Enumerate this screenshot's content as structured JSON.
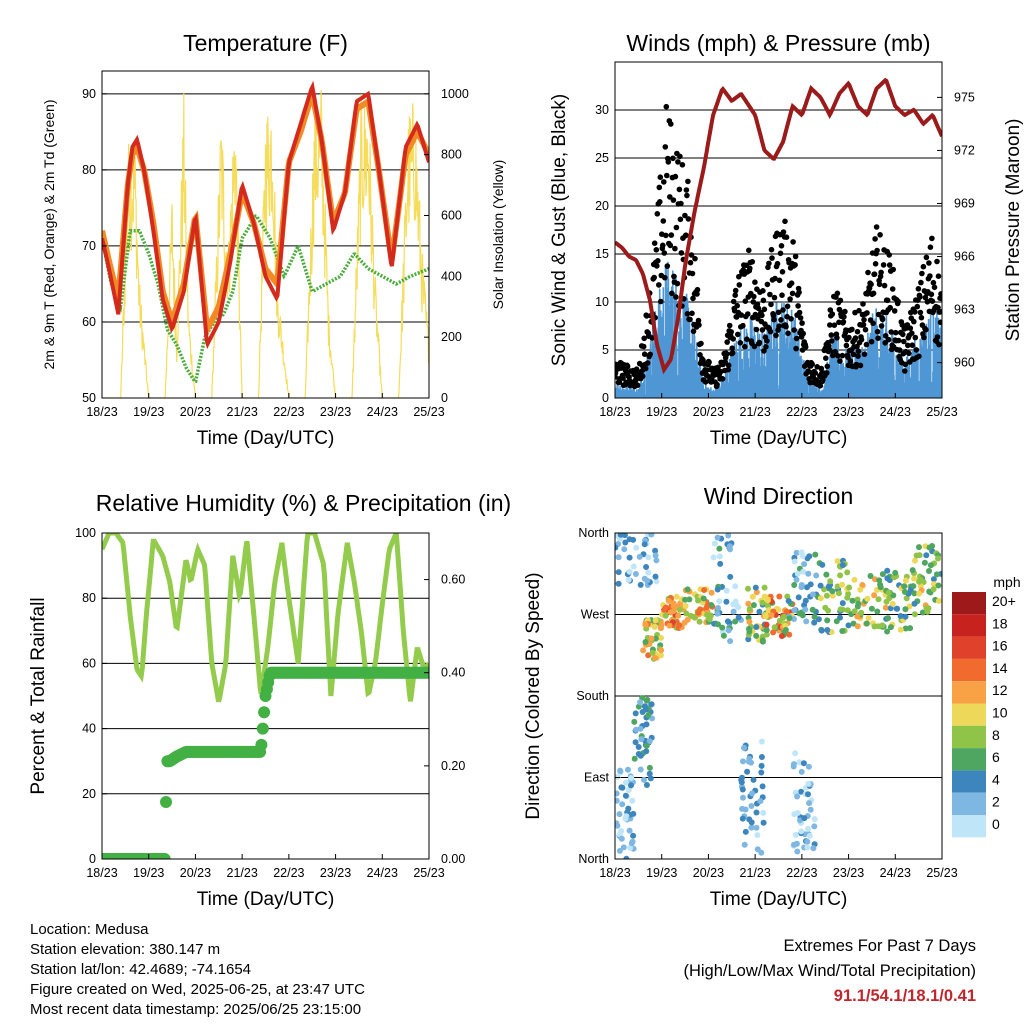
{
  "x_ticks": [
    "18/23",
    "19/23",
    "20/23",
    "21/23",
    "22/23",
    "23/23",
    "24/23",
    "25/23"
  ],
  "xlabel": "Time (Day/UTC)",
  "colors": {
    "temp2m": "#d42a1e",
    "temp9m": "#f08a24",
    "dewpoint": "#4aad3c",
    "solar": "#f5dc5a",
    "gust": "#000000",
    "wind": "#4f97d4",
    "pressure": "#9b1b1b",
    "rh": "#93cc4c",
    "rain": "#43b044",
    "extremes": "#c0272d"
  },
  "footer": {
    "location": "Location: Medusa",
    "elevation": "Station elevation: 380.147 m",
    "latlon": "Station lat/lon: 42.4689; -74.1654",
    "created": "Figure created on Wed, 2025-06-25, at 23:47 UTC",
    "recent": "Most recent data timestamp: 2025/06/25 23:15:00",
    "extremes_title": "Extremes For Past 7 Days",
    "extremes_sub": "(High/Low/Max Wind/Total Precipitation)",
    "extremes_values": "91.1/54.1/18.1/0.41"
  },
  "chart_data": [
    {
      "type": "line",
      "title": "Temperature (F)",
      "xlabel": "Time (Day/UTC)",
      "ylabel": "2m & 9m T (Red, Orange) & 2m Td (Green)",
      "y2label": "Solar Insolation (Yellow)",
      "x_range_days": [
        0,
        7
      ],
      "ylim": [
        50,
        93
      ],
      "yticks": [
        50,
        60,
        70,
        80,
        90
      ],
      "y2lim": [
        0,
        1075
      ],
      "y2ticks": [
        0,
        200,
        400,
        600,
        800,
        1000
      ],
      "grid": "horizontal",
      "series": [
        {
          "name": "2m T",
          "axis": "left",
          "x": [
            0,
            0.15,
            0.35,
            0.55,
            0.65,
            0.75,
            0.9,
            1.1,
            1.3,
            1.5,
            1.75,
            2.0,
            2.25,
            2.5,
            2.75,
            3.0,
            3.25,
            3.5,
            3.75,
            4.0,
            4.25,
            4.5,
            4.7,
            4.95,
            5.2,
            5.45,
            5.7,
            5.95,
            6.2,
            6.5,
            6.75,
            7.0
          ],
          "y": [
            71,
            67,
            61,
            78,
            83,
            84,
            80,
            72,
            63,
            59,
            64,
            74,
            57,
            60,
            68,
            78,
            73,
            66,
            63,
            81,
            86,
            91,
            84,
            72,
            77,
            89,
            90,
            79,
            67,
            83,
            86,
            81
          ]
        },
        {
          "name": "9m T",
          "axis": "left",
          "x": [
            0,
            0.15,
            0.35,
            0.55,
            0.65,
            0.75,
            0.9,
            1.1,
            1.3,
            1.5,
            1.75,
            2.0,
            2.25,
            2.5,
            2.75,
            3.0,
            3.25,
            3.5,
            3.75,
            4.0,
            4.25,
            4.5,
            4.7,
            4.95,
            5.2,
            5.45,
            5.7,
            5.95,
            6.2,
            6.5,
            6.75,
            7.0
          ],
          "y": [
            72,
            68,
            63,
            78,
            82,
            83,
            80,
            73,
            64,
            60,
            65,
            74,
            59,
            62,
            69,
            77,
            73,
            67,
            65,
            81,
            85,
            90,
            84,
            73,
            77,
            88,
            89,
            79,
            68,
            82,
            85,
            82
          ]
        },
        {
          "name": "2m Td",
          "axis": "left",
          "x": [
            0,
            0.2,
            0.4,
            0.6,
            0.8,
            1.0,
            1.2,
            1.4,
            1.6,
            1.8,
            2.0,
            2.2,
            2.4,
            2.6,
            2.8,
            3.0,
            3.3,
            3.6,
            3.9,
            4.2,
            4.5,
            4.8,
            5.1,
            5.4,
            5.7,
            6.0,
            6.3,
            6.6,
            7.0
          ],
          "y": [
            71,
            65,
            62,
            72,
            72,
            69,
            65,
            59,
            57,
            54,
            52,
            58,
            60,
            61,
            64,
            71,
            74,
            71,
            66,
            70,
            64,
            65,
            66,
            69,
            67,
            66,
            65,
            66,
            67
          ]
        },
        {
          "name": "Solar",
          "axis": "right",
          "x": [
            0,
            0.4,
            0.55,
            0.7,
            0.8,
            1.0,
            1.35,
            1.5,
            1.6,
            1.75,
            1.85,
            2.0,
            2.35,
            2.55,
            2.7,
            2.85,
            3.0,
            3.35,
            3.5,
            3.65,
            3.75,
            4.0,
            4.35,
            4.55,
            4.7,
            4.85,
            5.0,
            5.35,
            5.55,
            5.7,
            5.85,
            6.0,
            6.35,
            6.55,
            6.7,
            6.85,
            7.0
          ],
          "y": [
            0,
            0,
            850,
            900,
            400,
            0,
            0,
            700,
            200,
            1010,
            300,
            0,
            0,
            980,
            500,
            1050,
            0,
            0,
            950,
            1060,
            400,
            0,
            0,
            1000,
            1050,
            300,
            0,
            0,
            1000,
            1030,
            400,
            0,
            0,
            950,
            1000,
            500,
            200
          ]
        }
      ]
    },
    {
      "type": "scatter",
      "title": "Winds (mph) & Pressure (mb)",
      "xlabel": "Time (Day/UTC)",
      "ylabel": "Sonic Wind & Gust (Blue, Black)",
      "y2label": "Station Pressure (Maroon)",
      "x_range_days": [
        0,
        7
      ],
      "ylim": [
        0,
        35
      ],
      "yticks": [
        0,
        5,
        10,
        15,
        20,
        25,
        30
      ],
      "y2lim": [
        958,
        977
      ],
      "y2ticks": [
        960,
        963,
        966,
        969,
        972,
        975
      ],
      "grid": "horizontal",
      "series": [
        {
          "name": "Gust",
          "axis": "left",
          "envelope_x": [
            0,
            0.5,
            0.8,
            1.1,
            1.3,
            1.6,
            1.9,
            2.1,
            2.3,
            2.6,
            2.9,
            3.2,
            3.5,
            3.8,
            4.1,
            4.4,
            4.7,
            5.0,
            5.3,
            5.6,
            5.9,
            6.2,
            6.5,
            6.8,
            7.0
          ],
          "envelope_y": [
            4,
            3,
            14,
            31,
            28,
            22,
            5,
            3,
            4,
            13,
            16,
            12,
            19,
            18,
            5,
            3,
            12,
            8,
            10,
            18,
            15,
            7,
            12,
            18,
            12
          ]
        },
        {
          "name": "Wind",
          "axis": "left",
          "envelope_x": [
            0,
            0.5,
            0.8,
            1.1,
            1.3,
            1.6,
            1.9,
            2.1,
            2.3,
            2.6,
            2.9,
            3.2,
            3.5,
            3.8,
            4.1,
            4.4,
            4.7,
            5.0,
            5.3,
            5.6,
            5.9,
            6.2,
            6.5,
            6.8,
            7.0
          ],
          "envelope_y": [
            2,
            1,
            8,
            15,
            14,
            10,
            2,
            1,
            2,
            7,
            9,
            7,
            11,
            10,
            3,
            1,
            7,
            5,
            6,
            10,
            8,
            4,
            7,
            10,
            8
          ]
        },
        {
          "name": "Pressure",
          "axis": "right",
          "x": [
            0,
            0.15,
            0.3,
            0.45,
            0.6,
            0.75,
            0.9,
            1.05,
            1.2,
            1.35,
            1.5,
            1.7,
            1.9,
            2.1,
            2.3,
            2.5,
            2.7,
            3.0,
            3.2,
            3.4,
            3.6,
            3.8,
            4.0,
            4.2,
            4.4,
            4.6,
            4.8,
            5.0,
            5.2,
            5.4,
            5.6,
            5.8,
            6.0,
            6.2,
            6.4,
            6.6,
            6.8,
            7.0
          ],
          "y": [
            966.8,
            966.5,
            966.0,
            965.8,
            965.0,
            963.5,
            961.0,
            959.6,
            960.2,
            962.5,
            965.5,
            968.5,
            971.0,
            974.0,
            975.5,
            974.8,
            975.2,
            974.0,
            972.0,
            971.5,
            972.5,
            974.5,
            974.0,
            975.5,
            975.0,
            974.0,
            975.2,
            975.8,
            974.5,
            974.0,
            975.5,
            976.0,
            974.5,
            974.0,
            974.3,
            973.5,
            974.0,
            972.8
          ]
        }
      ]
    },
    {
      "type": "line",
      "title": "Relative Humidity (%) & Precipitation (in)",
      "xlabel": "Time (Day/UTC)",
      "ylabel": "Percent & Total Rainfall",
      "x_range_days": [
        0,
        7
      ],
      "ylim": [
        0,
        100
      ],
      "yticks": [
        0,
        20,
        40,
        60,
        80,
        100
      ],
      "y2lim": [
        0,
        0.7
      ],
      "y2ticks": [
        0.0,
        0.2,
        0.4,
        0.6
      ],
      "y2ticklabels": [
        "0.00",
        "0.20",
        "0.40",
        "0.60"
      ],
      "grid": "horizontal",
      "series": [
        {
          "name": "RH",
          "axis": "left",
          "x": [
            0,
            0.15,
            0.3,
            0.45,
            0.6,
            0.75,
            0.85,
            0.95,
            1.1,
            1.3,
            1.45,
            1.6,
            1.8,
            1.9,
            2.05,
            2.2,
            2.35,
            2.5,
            2.65,
            2.8,
            2.95,
            3.1,
            3.25,
            3.4,
            3.55,
            3.7,
            3.85,
            4.0,
            4.2,
            4.4,
            4.55,
            4.75,
            4.9,
            5.05,
            5.25,
            5.4,
            5.55,
            5.7,
            5.85,
            6.0,
            6.15,
            6.3,
            6.45,
            6.6,
            6.75,
            6.9,
            7.0
          ],
          "y": [
            95,
            100,
            100,
            97,
            75,
            58,
            56,
            75,
            98,
            93,
            85,
            70,
            92,
            85,
            95,
            90,
            60,
            48,
            60,
            93,
            80,
            98,
            75,
            50,
            65,
            85,
            97,
            80,
            60,
            100,
            100,
            90,
            50,
            75,
            97,
            85,
            70,
            50,
            60,
            78,
            95,
            100,
            70,
            48,
            65,
            58,
            60
          ]
        },
        {
          "name": "Total Rainfall",
          "axis": "right",
          "x": [
            0,
            1.35,
            1.37,
            1.4,
            1.45,
            1.6,
            1.8,
            3.4,
            3.45,
            3.5,
            3.6,
            4.0,
            7.0
          ],
          "y": [
            0,
            0,
            0.12,
            0.21,
            0.21,
            0.22,
            0.23,
            0.23,
            0.29,
            0.35,
            0.4,
            0.4,
            0.4
          ]
        }
      ]
    },
    {
      "type": "scatter",
      "title": "Wind Direction",
      "xlabel": "Time (Day/UTC)",
      "ylabel": "Direction (Colored By Speed)",
      "x_range_days": [
        0,
        7
      ],
      "ylim": [
        0,
        360
      ],
      "yticklabels": [
        "North",
        "East",
        "South",
        "West",
        "North"
      ],
      "yticks": [
        0,
        90,
        180,
        270,
        360
      ],
      "grid": "horizontal",
      "legend": {
        "title": "mph",
        "labels": [
          "20+",
          "18",
          "16",
          "14",
          "12",
          "10",
          "8",
          "6",
          "4",
          "2",
          "0"
        ],
        "colors": [
          "#9e1a1a",
          "#c8221f",
          "#e0412a",
          "#f26b2e",
          "#f8a145",
          "#eed85a",
          "#8fc449",
          "#4fa660",
          "#3d86bd",
          "#7fb7e3",
          "#bfe5f8"
        ]
      },
      "clusters": [
        {
          "x": [
            0.0,
            0.9
          ],
          "dir": [
            300,
            360
          ],
          "speed": [
            0,
            5
          ]
        },
        {
          "x": [
            0.0,
            0.4
          ],
          "dir": [
            0,
            100
          ],
          "speed": [
            0,
            4
          ]
        },
        {
          "x": [
            0.4,
            0.8
          ],
          "dir": [
            80,
            180
          ],
          "speed": [
            2,
            6
          ]
        },
        {
          "x": [
            0.6,
            1.0
          ],
          "dir": [
            220,
            265
          ],
          "speed": [
            6,
            14
          ]
        },
        {
          "x": [
            1.0,
            1.5
          ],
          "dir": [
            255,
            290
          ],
          "speed": [
            8,
            16
          ]
        },
        {
          "x": [
            1.5,
            2.1
          ],
          "dir": [
            260,
            300
          ],
          "speed": [
            6,
            14
          ]
        },
        {
          "x": [
            2.1,
            2.7
          ],
          "dir": [
            240,
            360
          ],
          "speed": [
            0,
            6
          ]
        },
        {
          "x": [
            2.7,
            3.2
          ],
          "dir": [
            0,
            130
          ],
          "speed": [
            0,
            5
          ]
        },
        {
          "x": [
            2.8,
            3.3
          ],
          "dir": [
            240,
            300
          ],
          "speed": [
            4,
            12
          ]
        },
        {
          "x": [
            3.2,
            3.8
          ],
          "dir": [
            245,
            290
          ],
          "speed": [
            6,
            16
          ]
        },
        {
          "x": [
            3.7,
            4.4
          ],
          "dir": [
            260,
            340
          ],
          "speed": [
            0,
            6
          ]
        },
        {
          "x": [
            3.8,
            4.3
          ],
          "dir": [
            0,
            120
          ],
          "speed": [
            0,
            4
          ]
        },
        {
          "x": [
            4.4,
            5.0
          ],
          "dir": [
            250,
            330
          ],
          "speed": [
            3,
            10
          ]
        },
        {
          "x": [
            5.0,
            5.8
          ],
          "dir": [
            255,
            320
          ],
          "speed": [
            5,
            12
          ]
        },
        {
          "x": [
            5.8,
            6.4
          ],
          "dir": [
            250,
            320
          ],
          "speed": [
            3,
            10
          ]
        },
        {
          "x": [
            6.4,
            7.0
          ],
          "dir": [
            270,
            350
          ],
          "speed": [
            4,
            12
          ]
        }
      ]
    }
  ]
}
